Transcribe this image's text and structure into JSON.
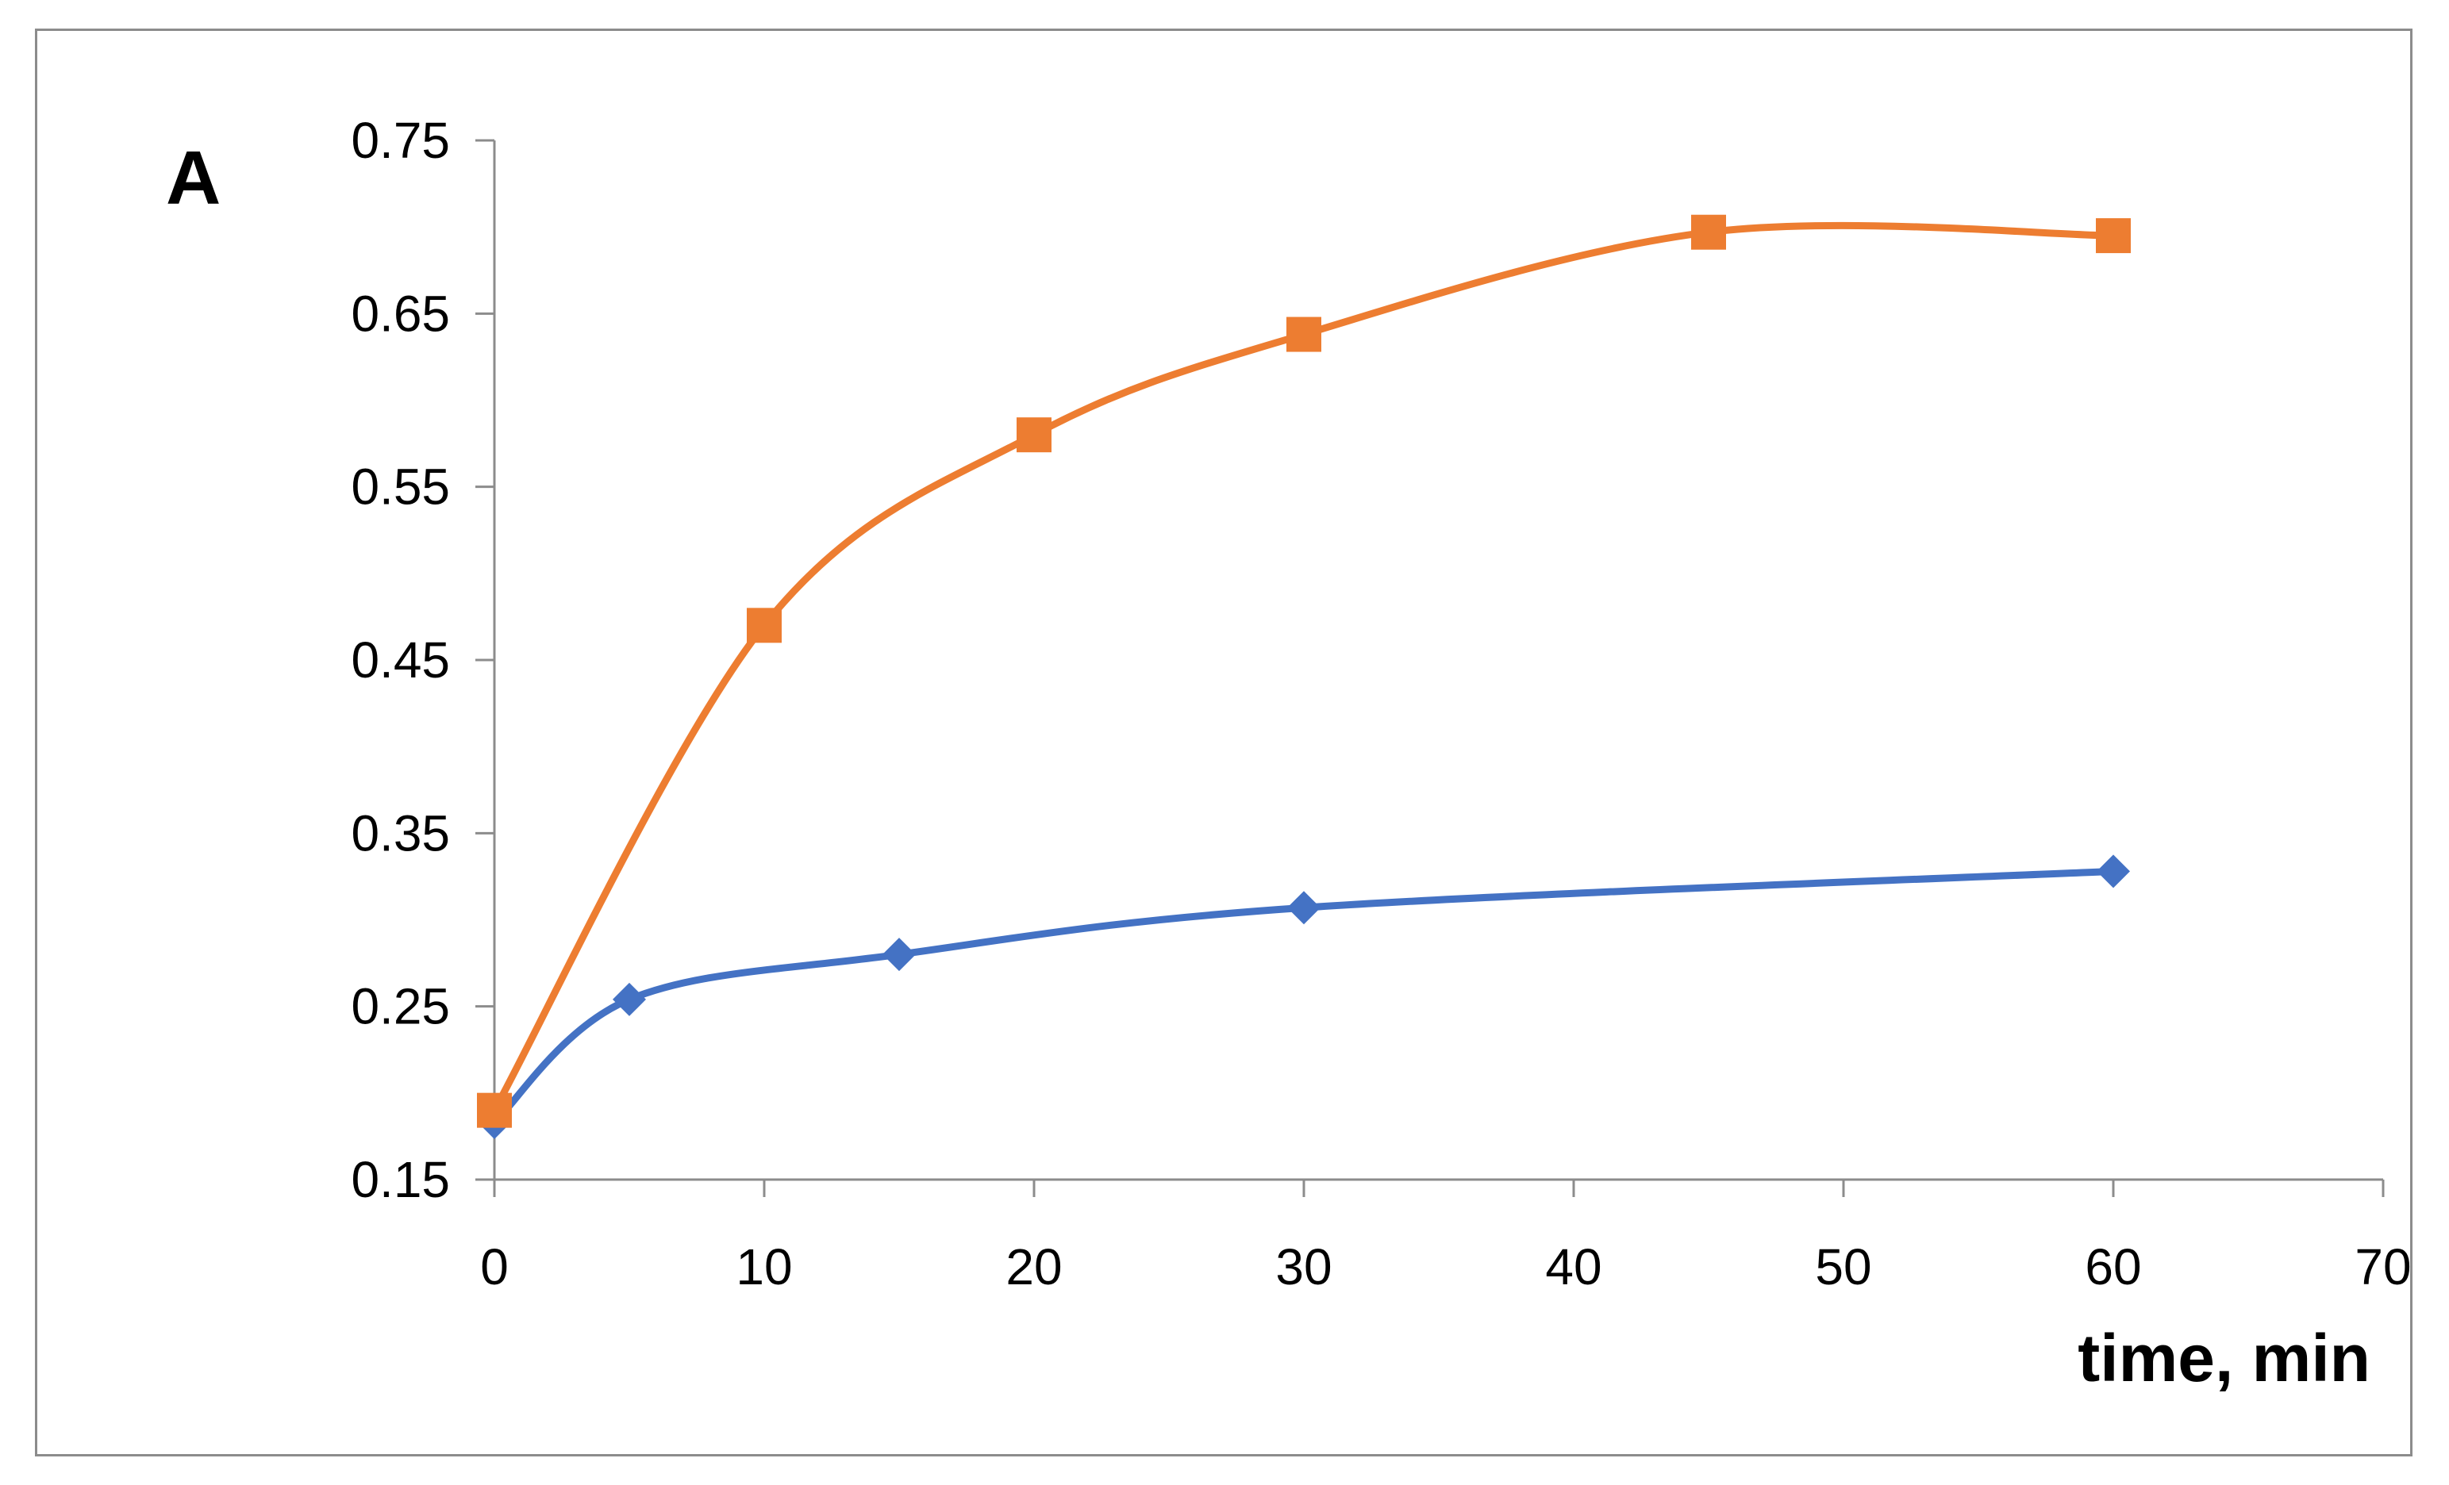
{
  "chart_data": {
    "type": "line",
    "panel_label": "A",
    "title": "",
    "xlabel": "time, min",
    "ylabel": "",
    "xlim": [
      0,
      70
    ],
    "ylim": [
      0.15,
      0.75
    ],
    "x_ticks": [
      0,
      10,
      20,
      30,
      40,
      50,
      60,
      70
    ],
    "y_ticks": [
      0.15,
      0.25,
      0.35,
      0.45,
      0.55,
      0.65,
      0.75
    ],
    "y_tick_labels": [
      "0.15",
      "0.25",
      "0.35",
      "0.45",
      "0.55",
      "0.65",
      "0.75"
    ],
    "grid": false,
    "legend": "none",
    "smoothed": true,
    "series": [
      {
        "color": "#4472C4",
        "marker": "diamond",
        "x": [
          0,
          5,
          15,
          30,
          60
        ],
        "y": [
          0.183,
          0.254,
          0.28,
          0.307,
          0.328
        ]
      },
      {
        "color": "#ED7D31",
        "marker": "square",
        "x": [
          0,
          10,
          20,
          30,
          45,
          60
        ],
        "y": [
          0.19,
          0.47,
          0.58,
          0.638,
          0.697,
          0.695
        ]
      }
    ]
  }
}
